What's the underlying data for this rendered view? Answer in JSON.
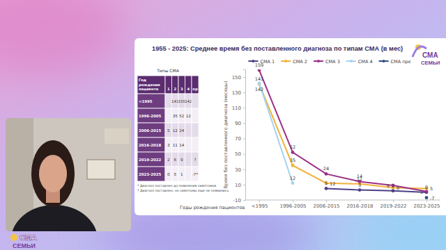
{
  "chart_data": {
    "type": "line",
    "title": "1955 - 2025: Среднее время без поставленного диагноза по типам СМА (в мес)",
    "x_label": "Годы рождения пациентов",
    "y_label": "Время без поставленного диагноза (месяцы)",
    "categories": [
      "<1995",
      "1996-2005",
      "2006-2015",
      "2016-2018",
      "2019-2022",
      "2023-2025"
    ],
    "series": [
      {
        "name": "СМА 1",
        "color": "#4a3f86",
        "marker": "circle",
        "values": [
          null,
          null,
          5,
          3,
          2,
          0
        ]
      },
      {
        "name": "СМА 2",
        "color": "#f2b13b",
        "marker": "circle",
        "values": [
          141,
          35,
          12,
          11,
          6,
          5
        ]
      },
      {
        "name": "СМА 3",
        "color": "#9c2f86",
        "marker": "circle",
        "values": [
          159,
          52,
          24,
          14,
          9,
          1
        ]
      },
      {
        "name": "СМА 4",
        "color": "#a6d3ef",
        "marker": "circle",
        "values": [
          142,
          12,
          null,
          null,
          null,
          null
        ]
      },
      {
        "name": "СМА пре",
        "color": "#2f4f86",
        "marker": "circle",
        "values": [
          null,
          null,
          null,
          null,
          null,
          -7
        ]
      }
    ],
    "ylim": [
      -10,
      160
    ],
    "yticks": [
      -10,
      10,
      30,
      50,
      70,
      90,
      110,
      130,
      150
    ],
    "grid": false,
    "legend": "top",
    "data_labels": true
  },
  "table": {
    "title": "Типы СМА",
    "header": [
      "Год рождения пациента",
      "1",
      "2",
      "3",
      "4",
      "пр"
    ],
    "rows": [
      [
        "<1995",
        null,
        141,
        159,
        142,
        null
      ],
      [
        "1996-2005",
        null,
        35,
        52,
        12,
        null
      ],
      [
        "2006-2015",
        5,
        12,
        24,
        null,
        null
      ],
      [
        "2016-2018",
        3,
        11,
        14,
        null,
        null
      ],
      [
        "2019-2022",
        2,
        6,
        9,
        null,
        "?"
      ],
      [
        "2023-2025",
        0,
        5,
        1,
        null,
        "-7*"
      ]
    ],
    "notes": [
      "* Диагноз поставлен до появления симптомов",
      "? Диагноз поставлен, но симптомы еще не появились"
    ]
  },
  "branding": {
    "logo_top": [
      "СМА",
      "СЕМЬИ"
    ],
    "logo_bottom": [
      "СМА",
      "СЕМЬИ"
    ]
  }
}
